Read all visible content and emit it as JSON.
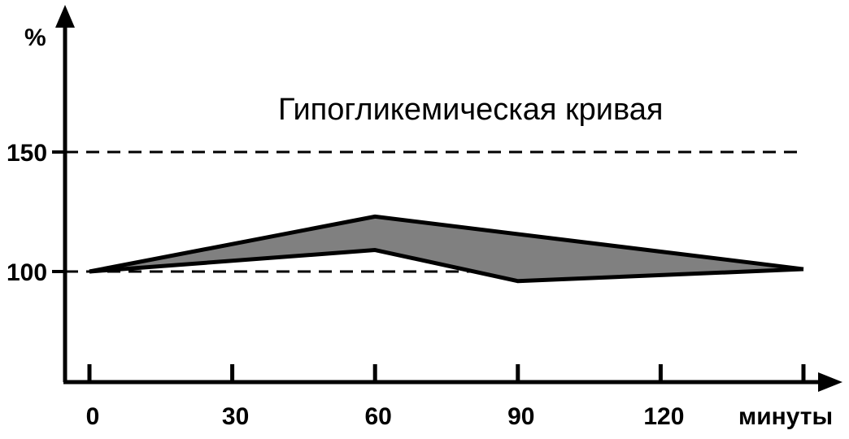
{
  "chart_data": {
    "type": "area",
    "title": "Гипогликемическая  кривая",
    "ylabel": "%",
    "xlabel": "минуты",
    "x_ticks": [
      {
        "value": 0,
        "label": "0"
      },
      {
        "value": 30,
        "label": "30"
      },
      {
        "value": 60,
        "label": "60"
      },
      {
        "value": 90,
        "label": "90"
      },
      {
        "value": 120,
        "label": "120"
      },
      {
        "value": 150,
        "label": ""
      }
    ],
    "y_ticks": [
      {
        "value": 100,
        "label": "100"
      },
      {
        "value": 150,
        "label": "150"
      }
    ],
    "reference_lines": [
      {
        "y": 150,
        "x_from": 0,
        "x_to": 150,
        "style": "dashed"
      },
      {
        "y": 100,
        "x_from": 0,
        "x_to": 80,
        "style": "dashed"
      }
    ],
    "band": {
      "upper": [
        [
          0,
          100
        ],
        [
          60,
          123
        ],
        [
          150,
          101
        ]
      ],
      "lower": [
        [
          0,
          100
        ],
        [
          60,
          109
        ],
        [
          90,
          96
        ],
        [
          150,
          101
        ]
      ],
      "fill": "#808080",
      "stroke": "#000000"
    },
    "xlim": [
      -5,
      160
    ],
    "ylim": [
      53,
      152
    ],
    "grid": false
  }
}
